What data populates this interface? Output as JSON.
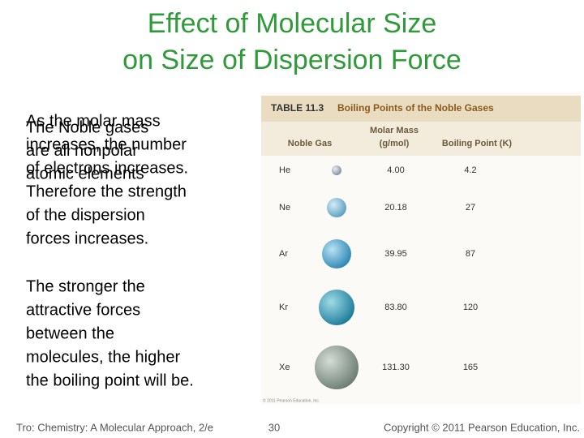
{
  "slide": {
    "title": [
      "Effect of Molecular Size",
      "on Size of Dispersion Force"
    ],
    "paragraph_1": [
      "As the molar mass",
      "increases, the number",
      "of electrons increases.",
      "Therefore the strength",
      "of the dispersion",
      "forces increases."
    ],
    "overlay_text": [
      "The Noble gases",
      "are all nonpolar",
      "atomic elements"
    ],
    "paragraph_2": [
      "The stronger the",
      "attractive forces",
      "between the",
      "molecules, the higher",
      "the boiling point will be."
    ],
    "table": {
      "caption_number": "TABLE 11.3",
      "caption_title": "Boiling Points of the Noble Gases",
      "headers": [
        "Noble Gas",
        [
          "Molar Mass",
          "(g/mol)"
        ],
        "Boiling Point (K)"
      ],
      "rows": [
        [
          "He",
          "4.00",
          "4.2"
        ],
        [
          "Ne",
          "20.18",
          "27"
        ],
        [
          "Ar",
          "39.95",
          "87"
        ],
        [
          "Kr",
          "83.80",
          "120"
        ],
        [
          "Xe",
          "131.30",
          "165"
        ]
      ],
      "credit": "© 2011 Pearson Education, Inc."
    },
    "footer": {
      "left": "Tro: Chemistry: A Molecular Approach, 2/e",
      "page": "30",
      "right": "Copyright © 2011 Pearson Education, Inc."
    }
  }
}
